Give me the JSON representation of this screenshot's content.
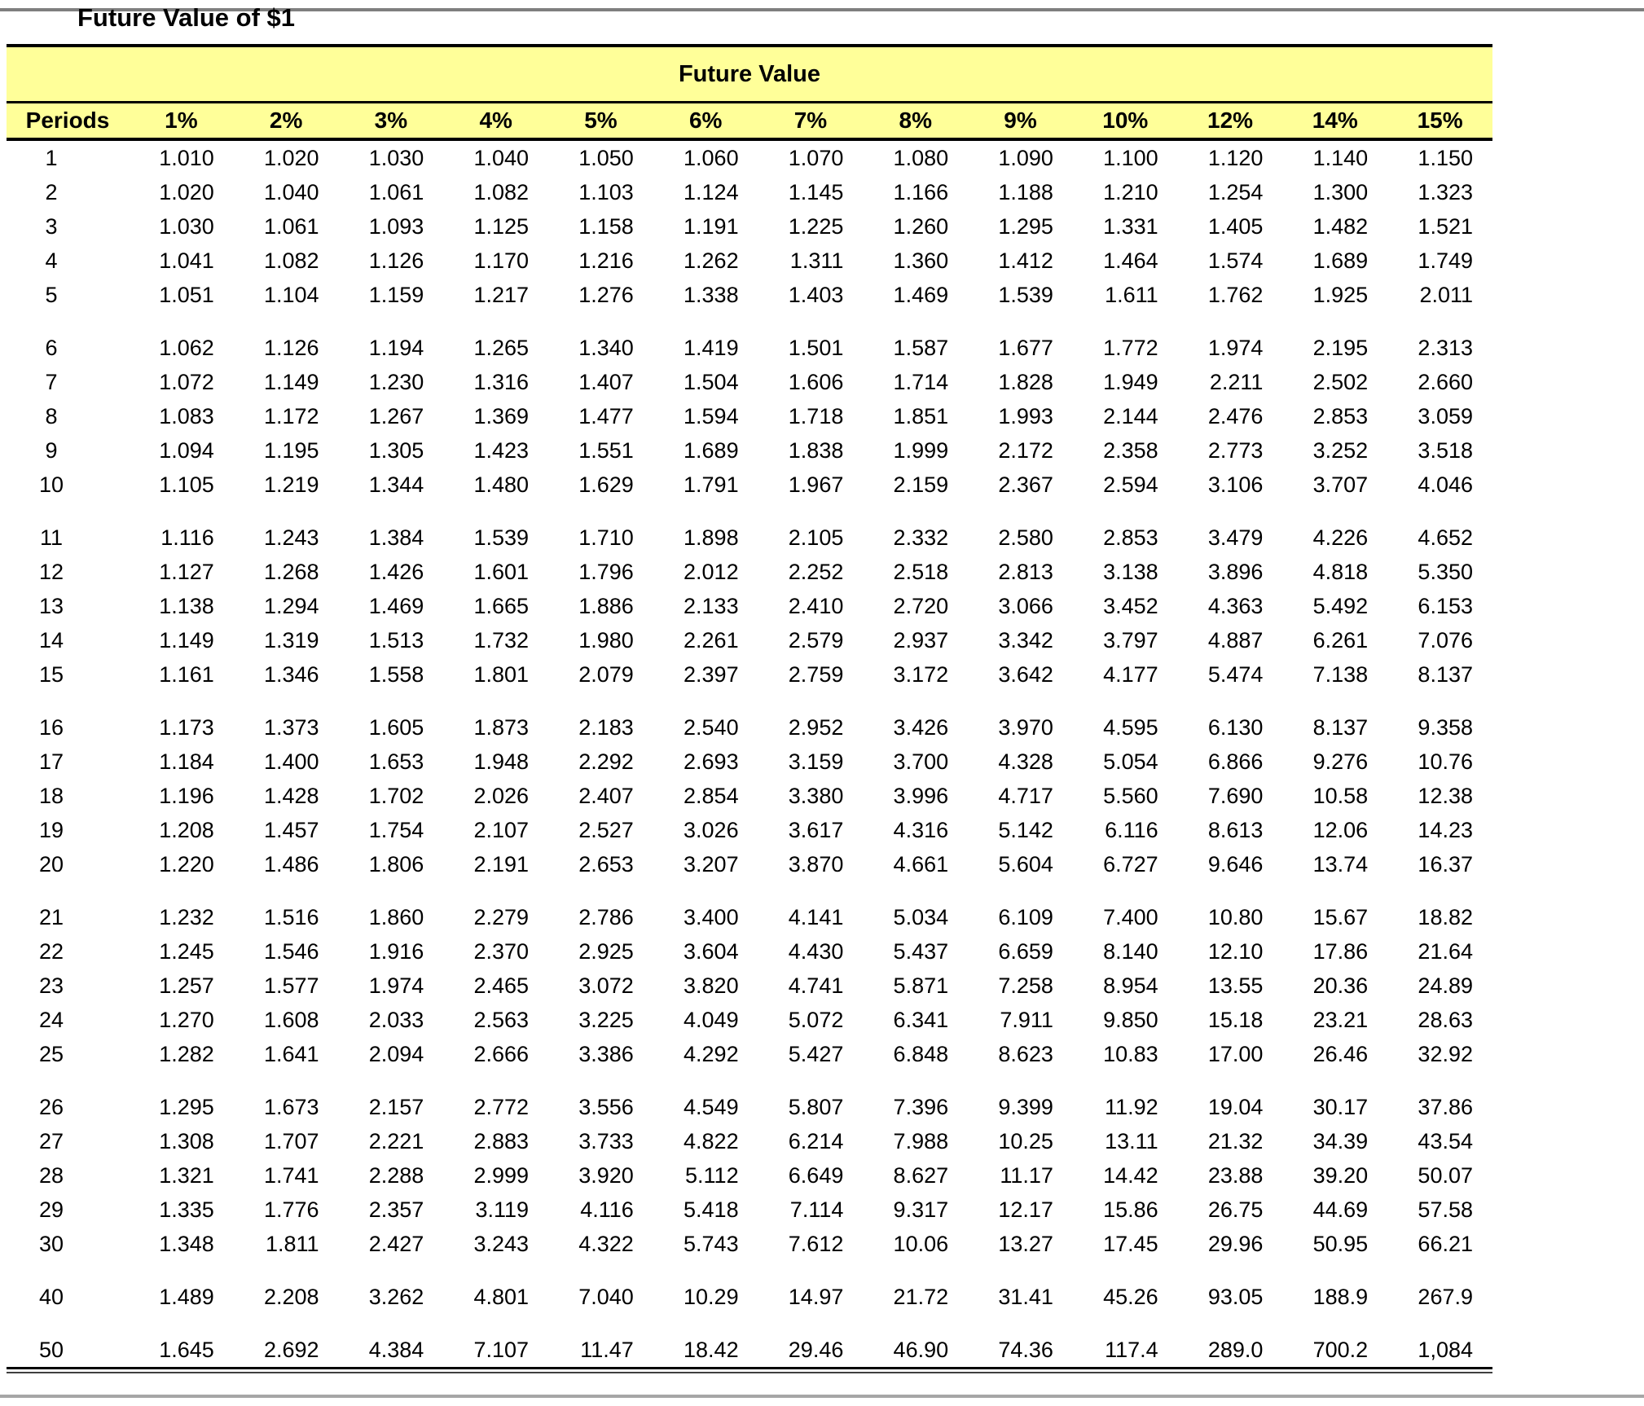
{
  "page": {
    "title": "Future Value of $1"
  },
  "table": {
    "band_title": "Future Value",
    "columns": [
      "Periods",
      "1%",
      "2%",
      "3%",
      "4%",
      "5%",
      "6%",
      "7%",
      "8%",
      "9%",
      "10%",
      "12%",
      "14%",
      "15%"
    ],
    "header_bg": "#ffff99",
    "groups": [
      {
        "rows": [
          {
            "period": "1",
            "values": [
              "1.010",
              "1.020",
              "1.030",
              "1.040",
              "1.050",
              "1.060",
              "1.070",
              "1.080",
              "1.090",
              "1.100",
              "1.120",
              "1.140",
              "1.150"
            ]
          },
          {
            "period": "2",
            "values": [
              "1.020",
              "1.040",
              "1.061",
              "1.082",
              "1.103",
              "1.124",
              "1.145",
              "1.166",
              "1.188",
              "1.210",
              "1.254",
              "1.300",
              "1.323"
            ]
          },
          {
            "period": "3",
            "values": [
              "1.030",
              "1.061",
              "1.093",
              "1.125",
              "1.158",
              "1.191",
              "1.225",
              "1.260",
              "1.295",
              "1.331",
              "1.405",
              "1.482",
              "1.521"
            ]
          },
          {
            "period": "4",
            "values": [
              "1.041",
              "1.082",
              "1.126",
              "1.170",
              "1.216",
              "1.262",
              "1.311",
              "1.360",
              "1.412",
              "1.464",
              "1.574",
              "1.689",
              "1.749"
            ]
          },
          {
            "period": "5",
            "values": [
              "1.051",
              "1.104",
              "1.159",
              "1.217",
              "1.276",
              "1.338",
              "1.403",
              "1.469",
              "1.539",
              "1.611",
              "1.762",
              "1.925",
              "2.011"
            ]
          }
        ]
      },
      {
        "rows": [
          {
            "period": "6",
            "values": [
              "1.062",
              "1.126",
              "1.194",
              "1.265",
              "1.340",
              "1.419",
              "1.501",
              "1.587",
              "1.677",
              "1.772",
              "1.974",
              "2.195",
              "2.313"
            ]
          },
          {
            "period": "7",
            "values": [
              "1.072",
              "1.149",
              "1.230",
              "1.316",
              "1.407",
              "1.504",
              "1.606",
              "1.714",
              "1.828",
              "1.949",
              "2.211",
              "2.502",
              "2.660"
            ]
          },
          {
            "period": "8",
            "values": [
              "1.083",
              "1.172",
              "1.267",
              "1.369",
              "1.477",
              "1.594",
              "1.718",
              "1.851",
              "1.993",
              "2.144",
              "2.476",
              "2.853",
              "3.059"
            ]
          },
          {
            "period": "9",
            "values": [
              "1.094",
              "1.195",
              "1.305",
              "1.423",
              "1.551",
              "1.689",
              "1.838",
              "1.999",
              "2.172",
              "2.358",
              "2.773",
              "3.252",
              "3.518"
            ]
          },
          {
            "period": "10",
            "values": [
              "1.105",
              "1.219",
              "1.344",
              "1.480",
              "1.629",
              "1.791",
              "1.967",
              "2.159",
              "2.367",
              "2.594",
              "3.106",
              "3.707",
              "4.046"
            ]
          }
        ]
      },
      {
        "rows": [
          {
            "period": "11",
            "values": [
              "1.116",
              "1.243",
              "1.384",
              "1.539",
              "1.710",
              "1.898",
              "2.105",
              "2.332",
              "2.580",
              "2.853",
              "3.479",
              "4.226",
              "4.652"
            ]
          },
          {
            "period": "12",
            "values": [
              "1.127",
              "1.268",
              "1.426",
              "1.601",
              "1.796",
              "2.012",
              "2.252",
              "2.518",
              "2.813",
              "3.138",
              "3.896",
              "4.818",
              "5.350"
            ]
          },
          {
            "period": "13",
            "values": [
              "1.138",
              "1.294",
              "1.469",
              "1.665",
              "1.886",
              "2.133",
              "2.410",
              "2.720",
              "3.066",
              "3.452",
              "4.363",
              "5.492",
              "6.153"
            ]
          },
          {
            "period": "14",
            "values": [
              "1.149",
              "1.319",
              "1.513",
              "1.732",
              "1.980",
              "2.261",
              "2.579",
              "2.937",
              "3.342",
              "3.797",
              "4.887",
              "6.261",
              "7.076"
            ]
          },
          {
            "period": "15",
            "values": [
              "1.161",
              "1.346",
              "1.558",
              "1.801",
              "2.079",
              "2.397",
              "2.759",
              "3.172",
              "3.642",
              "4.177",
              "5.474",
              "7.138",
              "8.137"
            ]
          }
        ]
      },
      {
        "rows": [
          {
            "period": "16",
            "values": [
              "1.173",
              "1.373",
              "1.605",
              "1.873",
              "2.183",
              "2.540",
              "2.952",
              "3.426",
              "3.970",
              "4.595",
              "6.130",
              "8.137",
              "9.358"
            ]
          },
          {
            "period": "17",
            "values": [
              "1.184",
              "1.400",
              "1.653",
              "1.948",
              "2.292",
              "2.693",
              "3.159",
              "3.700",
              "4.328",
              "5.054",
              "6.866",
              "9.276",
              "10.76"
            ]
          },
          {
            "period": "18",
            "values": [
              "1.196",
              "1.428",
              "1.702",
              "2.026",
              "2.407",
              "2.854",
              "3.380",
              "3.996",
              "4.717",
              "5.560",
              "7.690",
              "10.58",
              "12.38"
            ]
          },
          {
            "period": "19",
            "values": [
              "1.208",
              "1.457",
              "1.754",
              "2.107",
              "2.527",
              "3.026",
              "3.617",
              "4.316",
              "5.142",
              "6.116",
              "8.613",
              "12.06",
              "14.23"
            ]
          },
          {
            "period": "20",
            "values": [
              "1.220",
              "1.486",
              "1.806",
              "2.191",
              "2.653",
              "3.207",
              "3.870",
              "4.661",
              "5.604",
              "6.727",
              "9.646",
              "13.74",
              "16.37"
            ]
          }
        ]
      },
      {
        "rows": [
          {
            "period": "21",
            "values": [
              "1.232",
              "1.516",
              "1.860",
              "2.279",
              "2.786",
              "3.400",
              "4.141",
              "5.034",
              "6.109",
              "7.400",
              "10.80",
              "15.67",
              "18.82"
            ]
          },
          {
            "period": "22",
            "values": [
              "1.245",
              "1.546",
              "1.916",
              "2.370",
              "2.925",
              "3.604",
              "4.430",
              "5.437",
              "6.659",
              "8.140",
              "12.10",
              "17.86",
              "21.64"
            ]
          },
          {
            "period": "23",
            "values": [
              "1.257",
              "1.577",
              "1.974",
              "2.465",
              "3.072",
              "3.820",
              "4.741",
              "5.871",
              "7.258",
              "8.954",
              "13.55",
              "20.36",
              "24.89"
            ]
          },
          {
            "period": "24",
            "values": [
              "1.270",
              "1.608",
              "2.033",
              "2.563",
              "3.225",
              "4.049",
              "5.072",
              "6.341",
              "7.911",
              "9.850",
              "15.18",
              "23.21",
              "28.63"
            ]
          },
          {
            "period": "25",
            "values": [
              "1.282",
              "1.641",
              "2.094",
              "2.666",
              "3.386",
              "4.292",
              "5.427",
              "6.848",
              "8.623",
              "10.83",
              "17.00",
              "26.46",
              "32.92"
            ]
          }
        ]
      },
      {
        "rows": [
          {
            "period": "26",
            "values": [
              "1.295",
              "1.673",
              "2.157",
              "2.772",
              "3.556",
              "4.549",
              "5.807",
              "7.396",
              "9.399",
              "11.92",
              "19.04",
              "30.17",
              "37.86"
            ]
          },
          {
            "period": "27",
            "values": [
              "1.308",
              "1.707",
              "2.221",
              "2.883",
              "3.733",
              "4.822",
              "6.214",
              "7.988",
              "10.25",
              "13.11",
              "21.32",
              "34.39",
              "43.54"
            ]
          },
          {
            "period": "28",
            "values": [
              "1.321",
              "1.741",
              "2.288",
              "2.999",
              "3.920",
              "5.112",
              "6.649",
              "8.627",
              "11.17",
              "14.42",
              "23.88",
              "39.20",
              "50.07"
            ]
          },
          {
            "period": "29",
            "values": [
              "1.335",
              "1.776",
              "2.357",
              "3.119",
              "4.116",
              "5.418",
              "7.114",
              "9.317",
              "12.17",
              "15.86",
              "26.75",
              "44.69",
              "57.58"
            ]
          },
          {
            "period": "30",
            "values": [
              "1.348",
              "1.811",
              "2.427",
              "3.243",
              "4.322",
              "5.743",
              "7.612",
              "10.06",
              "13.27",
              "17.45",
              "29.96",
              "50.95",
              "66.21"
            ]
          }
        ]
      },
      {
        "rows": [
          {
            "period": "40",
            "values": [
              "1.489",
              "2.208",
              "3.262",
              "4.801",
              "7.040",
              "10.29",
              "14.97",
              "21.72",
              "31.41",
              "45.26",
              "93.05",
              "188.9",
              "267.9"
            ]
          }
        ]
      },
      {
        "rows": [
          {
            "period": "50",
            "values": [
              "1.645",
              "2.692",
              "4.384",
              "7.107",
              "11.47",
              "18.42",
              "29.46",
              "46.90",
              "74.36",
              "117.4",
              "289.0",
              "700.2",
              "1,084"
            ]
          }
        ]
      }
    ]
  }
}
